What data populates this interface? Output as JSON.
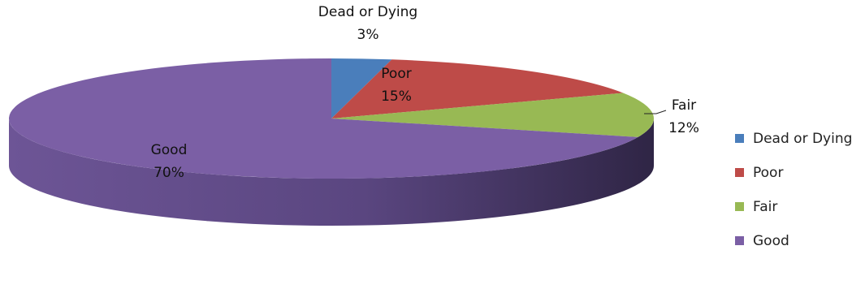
{
  "chart_data": {
    "type": "pie",
    "title": "",
    "categories": [
      "Dead or Dying",
      "Poor",
      "Fair",
      "Good"
    ],
    "values": [
      3,
      15,
      12,
      70
    ],
    "value_labels": [
      "3%",
      "15%",
      "12%",
      "70%"
    ],
    "colors": [
      "#4a7ebb",
      "#be4b48",
      "#98b954",
      "#7b5fa5"
    ],
    "legend_position": "right",
    "style": "3d"
  }
}
